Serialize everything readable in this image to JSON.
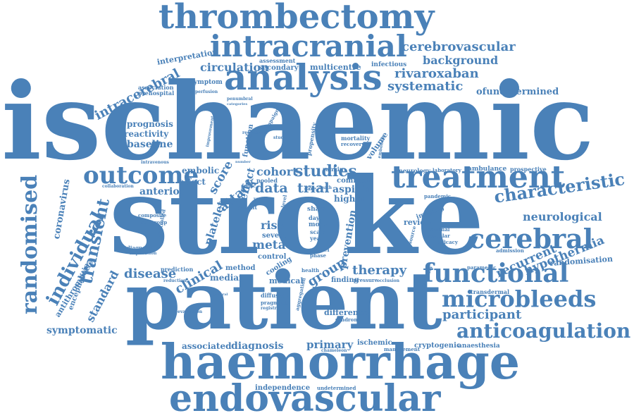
{
  "colors": {
    "word": "#4a81b8",
    "background": "#ffffff"
  },
  "words": [
    {
      "text": "stroke",
      "weight": 100
    },
    {
      "text": "ischaemic",
      "weight": 95
    },
    {
      "text": "patient",
      "weight": 90
    },
    {
      "text": "haemorrhage",
      "weight": 65
    },
    {
      "text": "endovascular",
      "weight": 55
    },
    {
      "text": "thrombectomy",
      "weight": 50
    },
    {
      "text": "analysis",
      "weight": 45
    },
    {
      "text": "intracranial",
      "weight": 42
    },
    {
      "text": "treatment",
      "weight": 42
    },
    {
      "text": "outcome",
      "weight": 32
    },
    {
      "text": "functional",
      "weight": 32
    },
    {
      "text": "cerebral",
      "weight": 32
    },
    {
      "text": "microbleeds",
      "weight": 28
    },
    {
      "text": "anticoagulation",
      "weight": 25
    },
    {
      "text": "randomised",
      "weight": 30
    },
    {
      "text": "individual",
      "weight": 26
    },
    {
      "text": "transient",
      "weight": 24
    },
    {
      "text": "characteristic",
      "weight": 22
    },
    {
      "text": "cerebrovascular",
      "weight": 16
    },
    {
      "text": "background",
      "weight": 14
    },
    {
      "text": "rivaroxaban",
      "weight": 17
    },
    {
      "text": "systematic",
      "weight": 17
    },
    {
      "text": "ofundetermined",
      "weight": 12
    },
    {
      "text": "circulation",
      "weight": 16
    },
    {
      "text": "secondary",
      "weight": 10
    },
    {
      "text": "multicentre",
      "weight": 10
    },
    {
      "text": "infectious",
      "weight": 8
    },
    {
      "text": "assessment",
      "weight": 8
    },
    {
      "text": "interpretation",
      "weight": 10
    },
    {
      "text": "intracerebral",
      "weight": 17
    },
    {
      "text": "association",
      "weight": 8
    },
    {
      "text": "prehospital",
      "weight": 8
    },
    {
      "text": "prognosis",
      "weight": 12
    },
    {
      "text": "reactivity",
      "weight": 12
    },
    {
      "text": "baseline",
      "weight": 13
    },
    {
      "text": "neurological",
      "weight": 16
    },
    {
      "text": "hypothermia",
      "weight": 16
    },
    {
      "text": "recurrent",
      "weight": 16
    },
    {
      "text": "randomisation",
      "weight": 11
    },
    {
      "text": "participant",
      "weight": 18
    },
    {
      "text": "studies",
      "weight": 20
    },
    {
      "text": "data",
      "weight": 18
    },
    {
      "text": "trial",
      "weight": 18
    },
    {
      "text": "score",
      "weight": 16
    },
    {
      "text": "attack",
      "weight": 18
    },
    {
      "text": "cohort",
      "weight": 15
    },
    {
      "text": "effect",
      "weight": 15
    },
    {
      "text": "aspirin",
      "weight": 14
    },
    {
      "text": "higher",
      "weight": 12
    },
    {
      "text": "common",
      "weight": 10
    },
    {
      "text": "group",
      "weight": 18
    },
    {
      "text": "therapy",
      "weight": 17
    },
    {
      "text": "clinical",
      "weight": 18
    },
    {
      "text": "disease",
      "weight": 17
    },
    {
      "text": "median",
      "weight": 12
    },
    {
      "text": "method",
      "weight": 10
    },
    {
      "text": "medical",
      "weight": 11
    },
    {
      "text": "finding",
      "weight": 10
    },
    {
      "text": "prevention",
      "weight": 14
    },
    {
      "text": "platelet",
      "weight": 15
    },
    {
      "text": "anterior",
      "weight": 14
    },
    {
      "text": "embolic",
      "weight": 12
    },
    {
      "text": "effect",
      "weight": 12
    },
    {
      "text": "coronavirus",
      "weight": 13
    },
    {
      "text": "standard",
      "weight": 16
    },
    {
      "text": "symptomatic",
      "weight": 14
    },
    {
      "text": "encephalitis",
      "weight": 10
    },
    {
      "text": "antithrombotic",
      "weight": 11
    },
    {
      "text": "associated",
      "weight": 12
    },
    {
      "text": "diagnosis",
      "weight": 14
    },
    {
      "text": "primary",
      "weight": 14
    },
    {
      "text": "ischemic",
      "weight": 10
    },
    {
      "text": "management",
      "weight": 8
    },
    {
      "text": "cryptogenic",
      "weight": 10
    },
    {
      "text": "anaesthesia",
      "weight": 9
    },
    {
      "text": "independence",
      "weight": 10
    },
    {
      "text": "undetermined",
      "weight": 8
    },
    {
      "text": "difference",
      "weight": 10
    },
    {
      "text": "review",
      "weight": 11
    },
    {
      "text": "meta",
      "weight": 16
    },
    {
      "text": "risk",
      "weight": 16
    },
    {
      "text": "severe",
      "weight": 11
    },
    {
      "text": "neurology",
      "weight": 8
    },
    {
      "text": "laboratory",
      "weight": 7
    },
    {
      "text": "ambulance",
      "weight": 9
    },
    {
      "text": "prospective",
      "weight": 8
    },
    {
      "text": "transdermal",
      "weight": 8
    },
    {
      "text": "paramedic",
      "weight": 7
    },
    {
      "text": "admission",
      "weight": 7
    },
    {
      "text": "symptom",
      "weight": 8
    },
    {
      "text": "reperfusion",
      "weight": 6
    },
    {
      "text": "penumbral",
      "weight": 6
    },
    {
      "text": "categories",
      "weight": 5
    },
    {
      "text": "function",
      "weight": 10
    },
    {
      "text": "volume",
      "weight": 11
    },
    {
      "text": "mortality",
      "weight": 8
    },
    {
      "text": "recovery",
      "weight": 7
    },
    {
      "text": "european",
      "weight": 6
    },
    {
      "text": "rankin",
      "weight": 8
    },
    {
      "text": "pooled",
      "weight": 8
    },
    {
      "text": "sham",
      "weight": 9
    },
    {
      "text": "more",
      "weight": 9
    },
    {
      "text": "scale",
      "weight": 8
    },
    {
      "text": "year",
      "weight": 8
    },
    {
      "text": "model",
      "weight": 8
    },
    {
      "text": "phase",
      "weight": 7
    },
    {
      "text": "control",
      "weight": 10
    },
    {
      "text": "cooling",
      "weight": 10
    },
    {
      "text": "patent",
      "weight": 8
    },
    {
      "text": "diffusion",
      "weight": 8
    },
    {
      "text": "pragmatic",
      "weight": 7
    },
    {
      "text": "registry",
      "weight": 6
    },
    {
      "text": "pressure",
      "weight": 7
    },
    {
      "text": "syndrome",
      "weight": 7
    },
    {
      "text": "pandemic",
      "weight": 7
    },
    {
      "text": "imaging",
      "weight": 9
    },
    {
      "text": "national",
      "weight": 7
    },
    {
      "text": "vascular",
      "weight": 7
    },
    {
      "text": "efficacy",
      "weight": 7
    },
    {
      "text": "composite",
      "weight": 7
    },
    {
      "text": "subgroup",
      "weight": 7
    },
    {
      "text": "diagnostic",
      "weight": 7
    },
    {
      "text": "implication",
      "weight": 6
    },
    {
      "text": "prediction",
      "weight": 8
    },
    {
      "text": "reduction",
      "weight": 6
    },
    {
      "text": "collaboration",
      "weight": 6
    },
    {
      "text": "intravenous",
      "weight": 6
    },
    {
      "text": "controlled",
      "weight": 7
    },
    {
      "text": "improvement",
      "weight": 6
    },
    {
      "text": "propensity",
      "weight": 8
    },
    {
      "text": "campaign",
      "weight": 7
    },
    {
      "text": "regression",
      "weight": 6
    },
    {
      "text": "embolism",
      "weight": 6
    },
    {
      "text": "evaluation",
      "weight": 6
    },
    {
      "text": "disability",
      "weight": 7
    },
    {
      "text": "aggregation",
      "weight": 7
    },
    {
      "text": "source",
      "weight": 7
    },
    {
      "text": "health",
      "weight": 7
    },
    {
      "text": "occlusion",
      "weight": 6
    },
    {
      "text": "chameleon",
      "weight": 6
    },
    {
      "text": "general",
      "weight": 5
    },
    {
      "text": "mimic",
      "weight": 6
    },
    {
      "text": "vessel",
      "weight": 6
    },
    {
      "text": "level",
      "weight": 7
    },
    {
      "text": "number",
      "weight": 5
    },
    {
      "text": "care",
      "weight": 7
    },
    {
      "text": "death",
      "weight": 6
    },
    {
      "text": "study",
      "weight": 6
    },
    {
      "text": "day",
      "weight": 8
    }
  ]
}
